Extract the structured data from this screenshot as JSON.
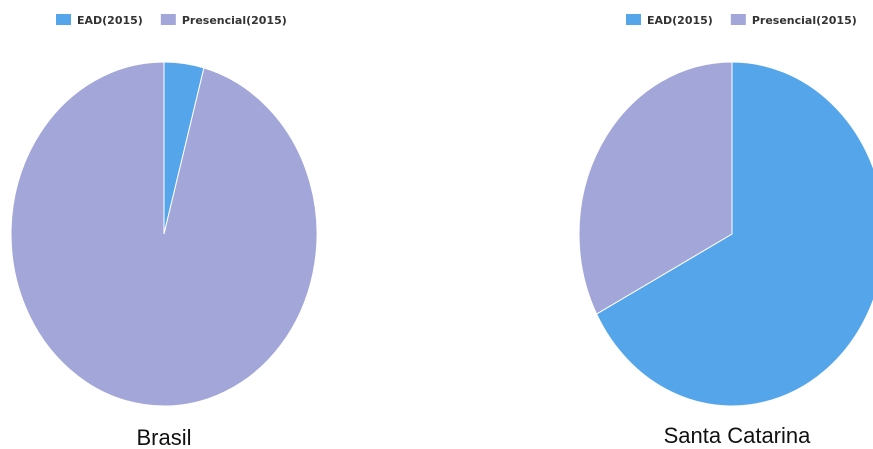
{
  "colors": {
    "EAD(2015)": "#55a5ea",
    "Presencial(2015)": "#a3a6d8",
    "separator": "#ffffff"
  },
  "chart_data": [
    {
      "type": "pie",
      "title": "Brasil",
      "legend_position": "top-left",
      "series": [
        {
          "name": "EAD(2015)",
          "value": 4.2
        },
        {
          "name": "Presencial(2015)",
          "value": 95.8
        }
      ]
    },
    {
      "type": "pie",
      "title": "Santa Catarina",
      "legend_position": "top-right",
      "series": [
        {
          "name": "EAD(2015)",
          "value": 67.3
        },
        {
          "name": "Presencial(2015)",
          "value": 32.7
        }
      ]
    }
  ]
}
